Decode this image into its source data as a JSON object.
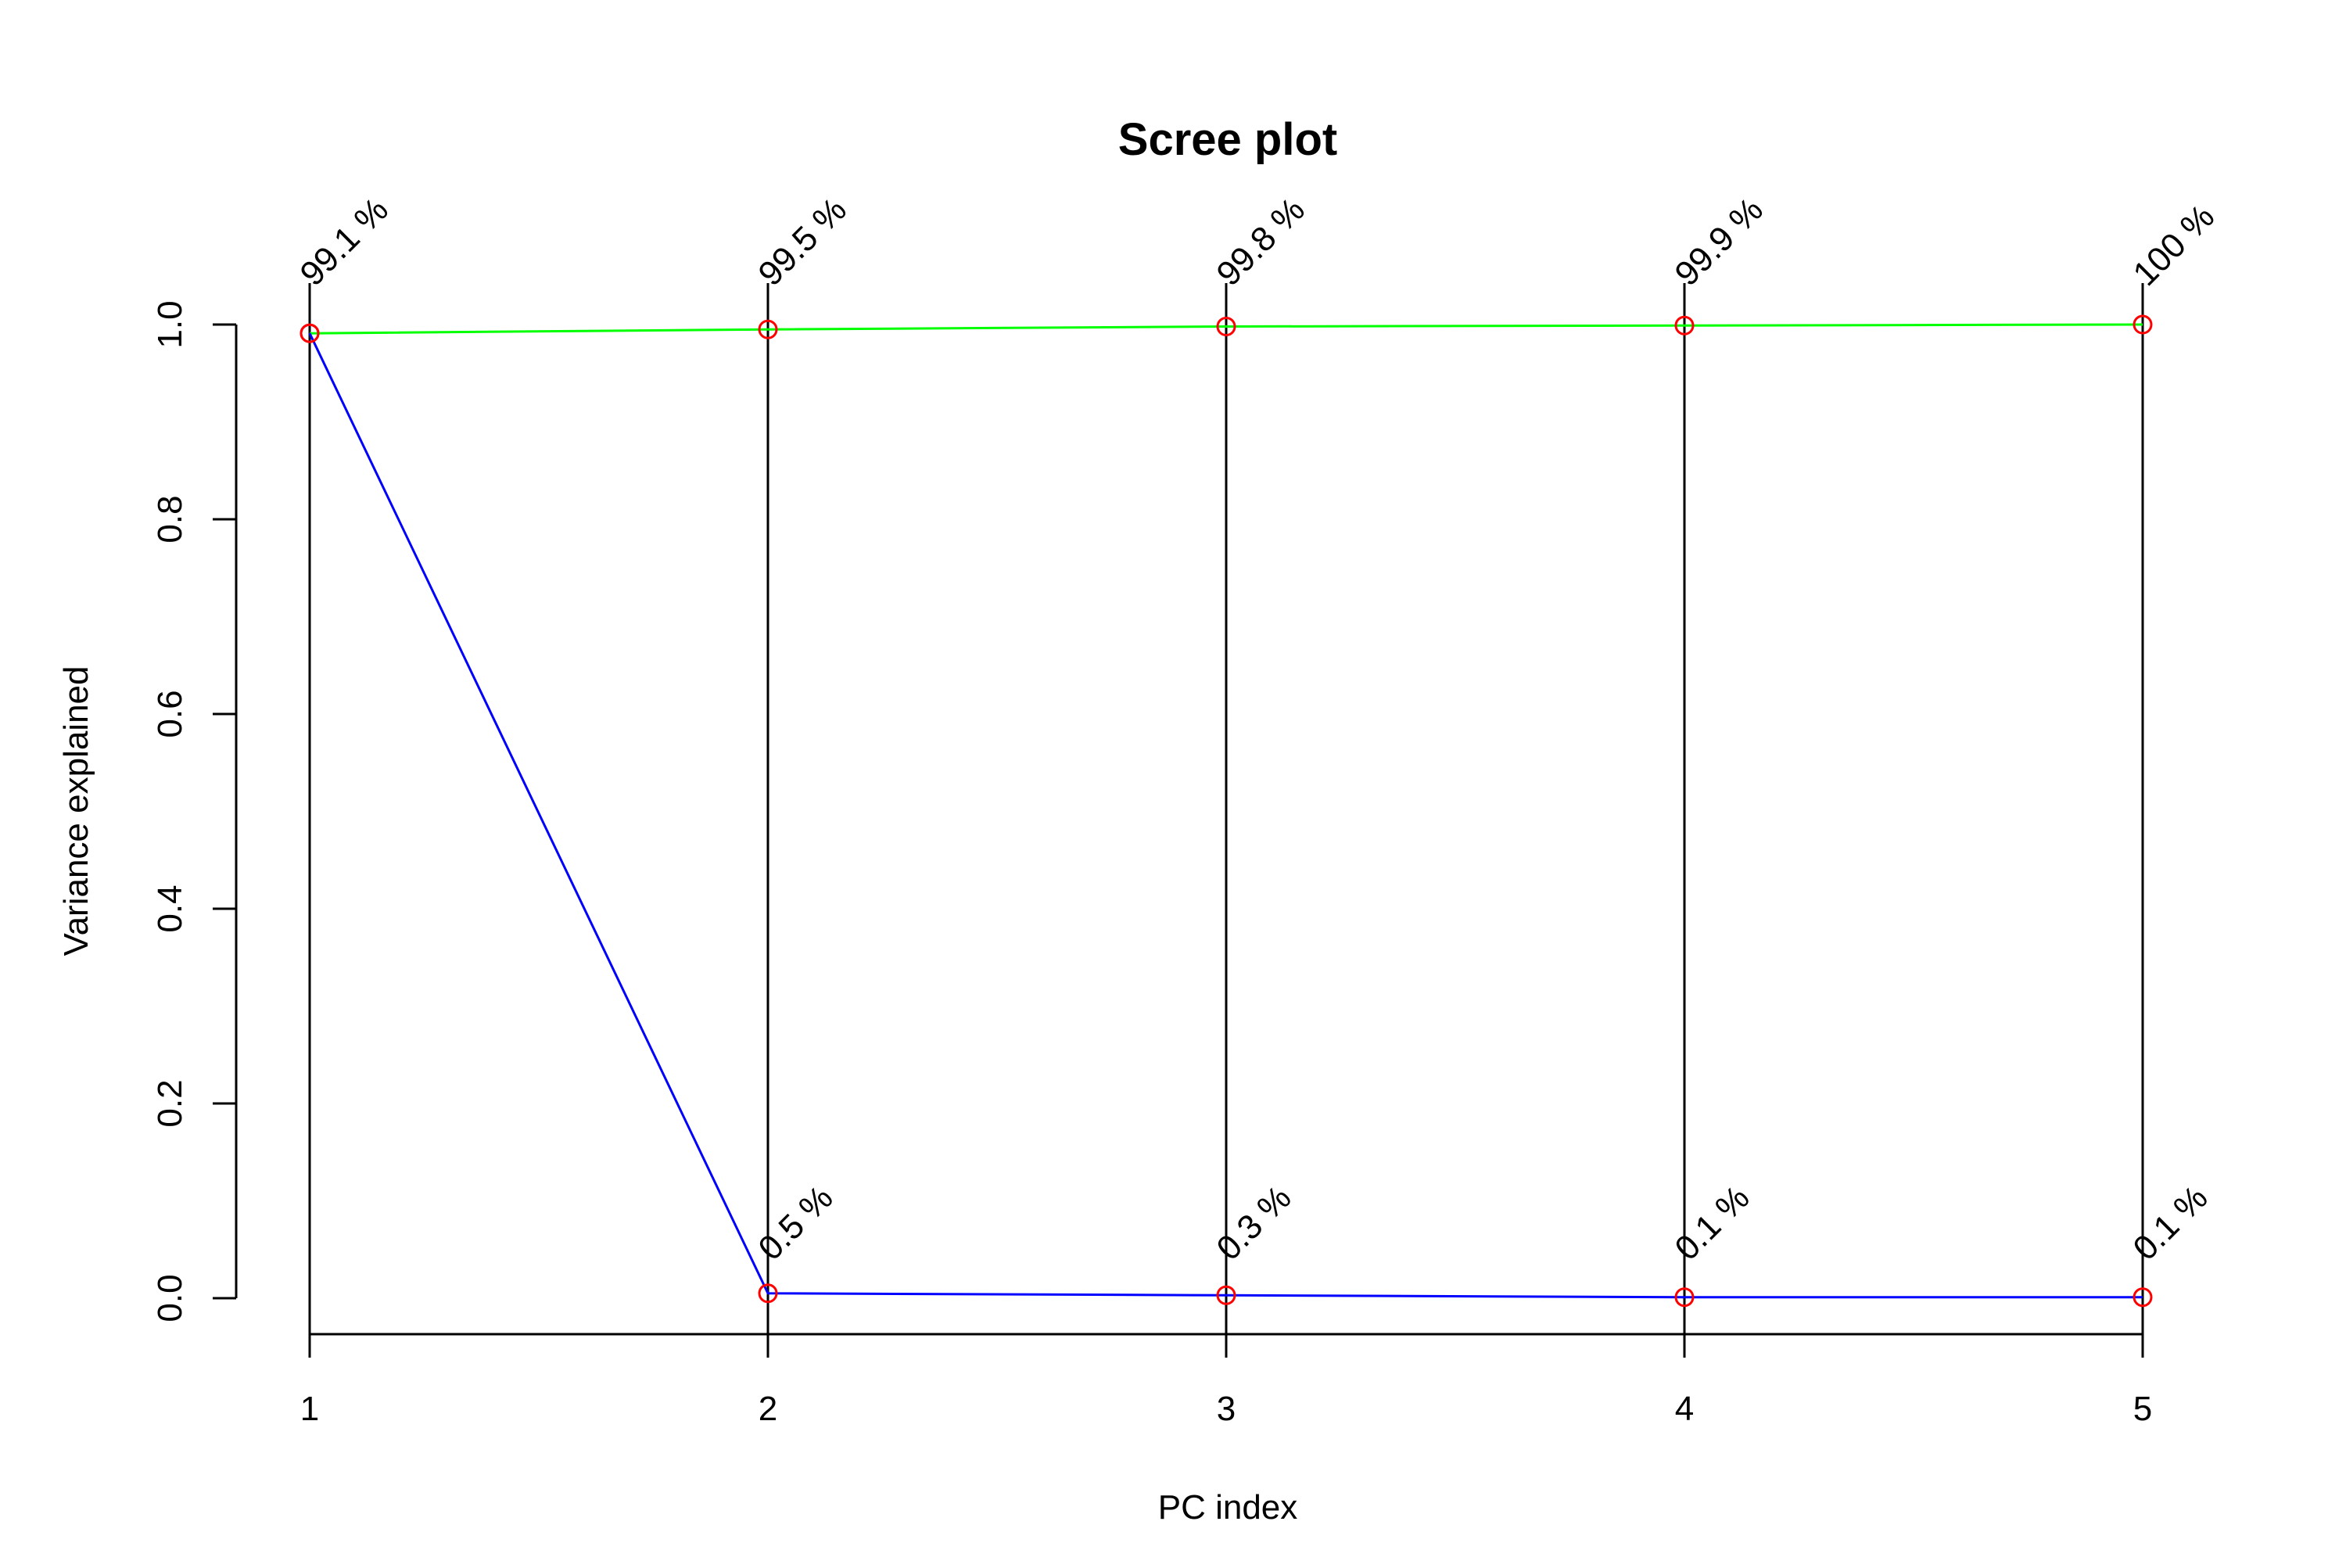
{
  "chart_data": {
    "type": "line",
    "title": "Scree plot",
    "xlabel": "PC index",
    "ylabel": "Variance explained",
    "x": [
      1,
      2,
      3,
      4,
      5
    ],
    "xlim": [
      1,
      5
    ],
    "ylim": [
      0,
      1
    ],
    "x_ticks": [
      "1",
      "2",
      "3",
      "4",
      "5"
    ],
    "y_ticks": [
      "0.0",
      "0.2",
      "0.4",
      "0.6",
      "0.8",
      "1.0"
    ],
    "grid": false,
    "legend": "none",
    "series": [
      {
        "key": "cumulative",
        "values": [
          0.991,
          0.995,
          0.998,
          0.999,
          1.0
        ],
        "labels": [
          "99.1 %",
          "99.5 %",
          "99.8 %",
          "99.9 %",
          "100 %"
        ],
        "color": "#00ff00"
      },
      {
        "key": "individual",
        "values": [
          0.991,
          0.005,
          0.003,
          0.001,
          0.001
        ],
        "labels": [
          "",
          "0.5 %",
          "0.3 %",
          "0.1 %",
          "0.1 %"
        ],
        "color": "#0000ff"
      }
    ],
    "marker_color": "#ff0000",
    "axis_color": "#000000"
  }
}
